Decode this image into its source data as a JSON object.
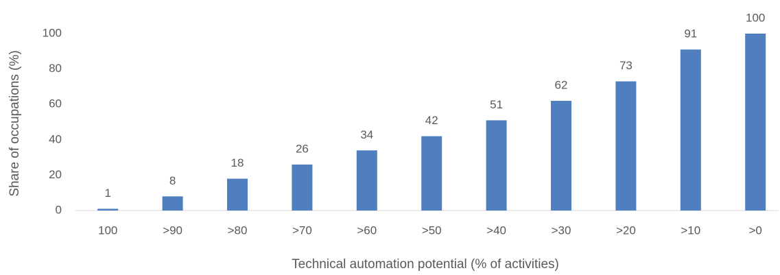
{
  "chart_data": {
    "type": "bar",
    "x_label": "Technical automation potential (% of activities)",
    "y_label": "Share of occupations (%)",
    "categories": [
      "100",
      ">90",
      ">80",
      ">70",
      ">60",
      ">50",
      ">40",
      ">30",
      ">20",
      ">10",
      ">0"
    ],
    "values": [
      1,
      8,
      18,
      26,
      34,
      42,
      51,
      62,
      73,
      91,
      100
    ],
    "color": "#4f7fbe",
    "ylim": [
      0,
      100
    ],
    "yticks": [
      0,
      20,
      40,
      60,
      80,
      100
    ],
    "grid": false,
    "data_labels": true
  }
}
